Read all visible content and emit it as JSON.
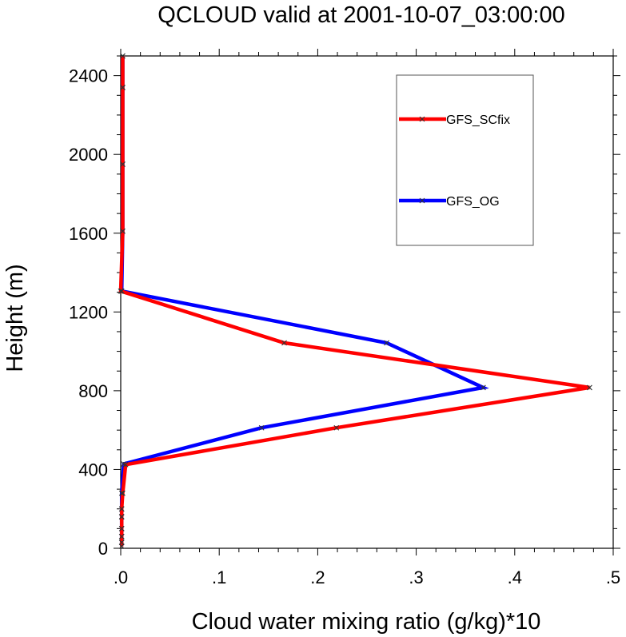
{
  "chart_data": {
    "type": "line",
    "title": "QCLOUD valid at 2001-10-07_03:00:00",
    "xlabel": "Cloud water mixing ratio (g/kg)*10",
    "ylabel": "Height (m)",
    "xlim": [
      0,
      0.5
    ],
    "ylim": [
      0,
      2500
    ],
    "x_ticks": [
      0,
      0.1,
      0.2,
      0.3,
      0.4,
      0.5
    ],
    "x_tick_labels": [
      ".0",
      ".1",
      ".2",
      ".3",
      ".4",
      ".5"
    ],
    "y_ticks": [
      0,
      400,
      800,
      1200,
      1600,
      2000,
      2400
    ],
    "y_tick_labels": [
      "0",
      "400",
      "800",
      "1200",
      "1600",
      "2000",
      "2400"
    ],
    "grid": false,
    "legend_position": "top-right",
    "series": [
      {
        "name": "GFS_SCfix",
        "color": "#ff0000",
        "points": [
          [
            0.001,
            10
          ],
          [
            0.001,
            30
          ],
          [
            0.001,
            60
          ],
          [
            0.001,
            100
          ],
          [
            0.001,
            160
          ],
          [
            0.001,
            200
          ],
          [
            0.002,
            280
          ],
          [
            0.005,
            425
          ],
          [
            0.219,
            612
          ],
          [
            0.476,
            816
          ],
          [
            0.166,
            1043
          ],
          [
            0.0,
            1306
          ],
          [
            0.002,
            1610
          ],
          [
            0.002,
            1950
          ],
          [
            0.002,
            2340
          ],
          [
            0.002,
            2500
          ]
        ]
      },
      {
        "name": "GFS_OG",
        "color": "#0000ff",
        "points": [
          [
            0.001,
            10
          ],
          [
            0.001,
            30
          ],
          [
            0.001,
            60
          ],
          [
            0.001,
            100
          ],
          [
            0.001,
            160
          ],
          [
            0.001,
            200
          ],
          [
            0.001,
            280
          ],
          [
            0.003,
            428
          ],
          [
            0.143,
            612
          ],
          [
            0.368,
            816
          ],
          [
            0.27,
            1043
          ],
          [
            0.001,
            1306
          ],
          [
            0.002,
            1610
          ],
          [
            0.002,
            1950
          ],
          [
            0.002,
            2340
          ],
          [
            0.002,
            2500
          ]
        ]
      }
    ]
  }
}
